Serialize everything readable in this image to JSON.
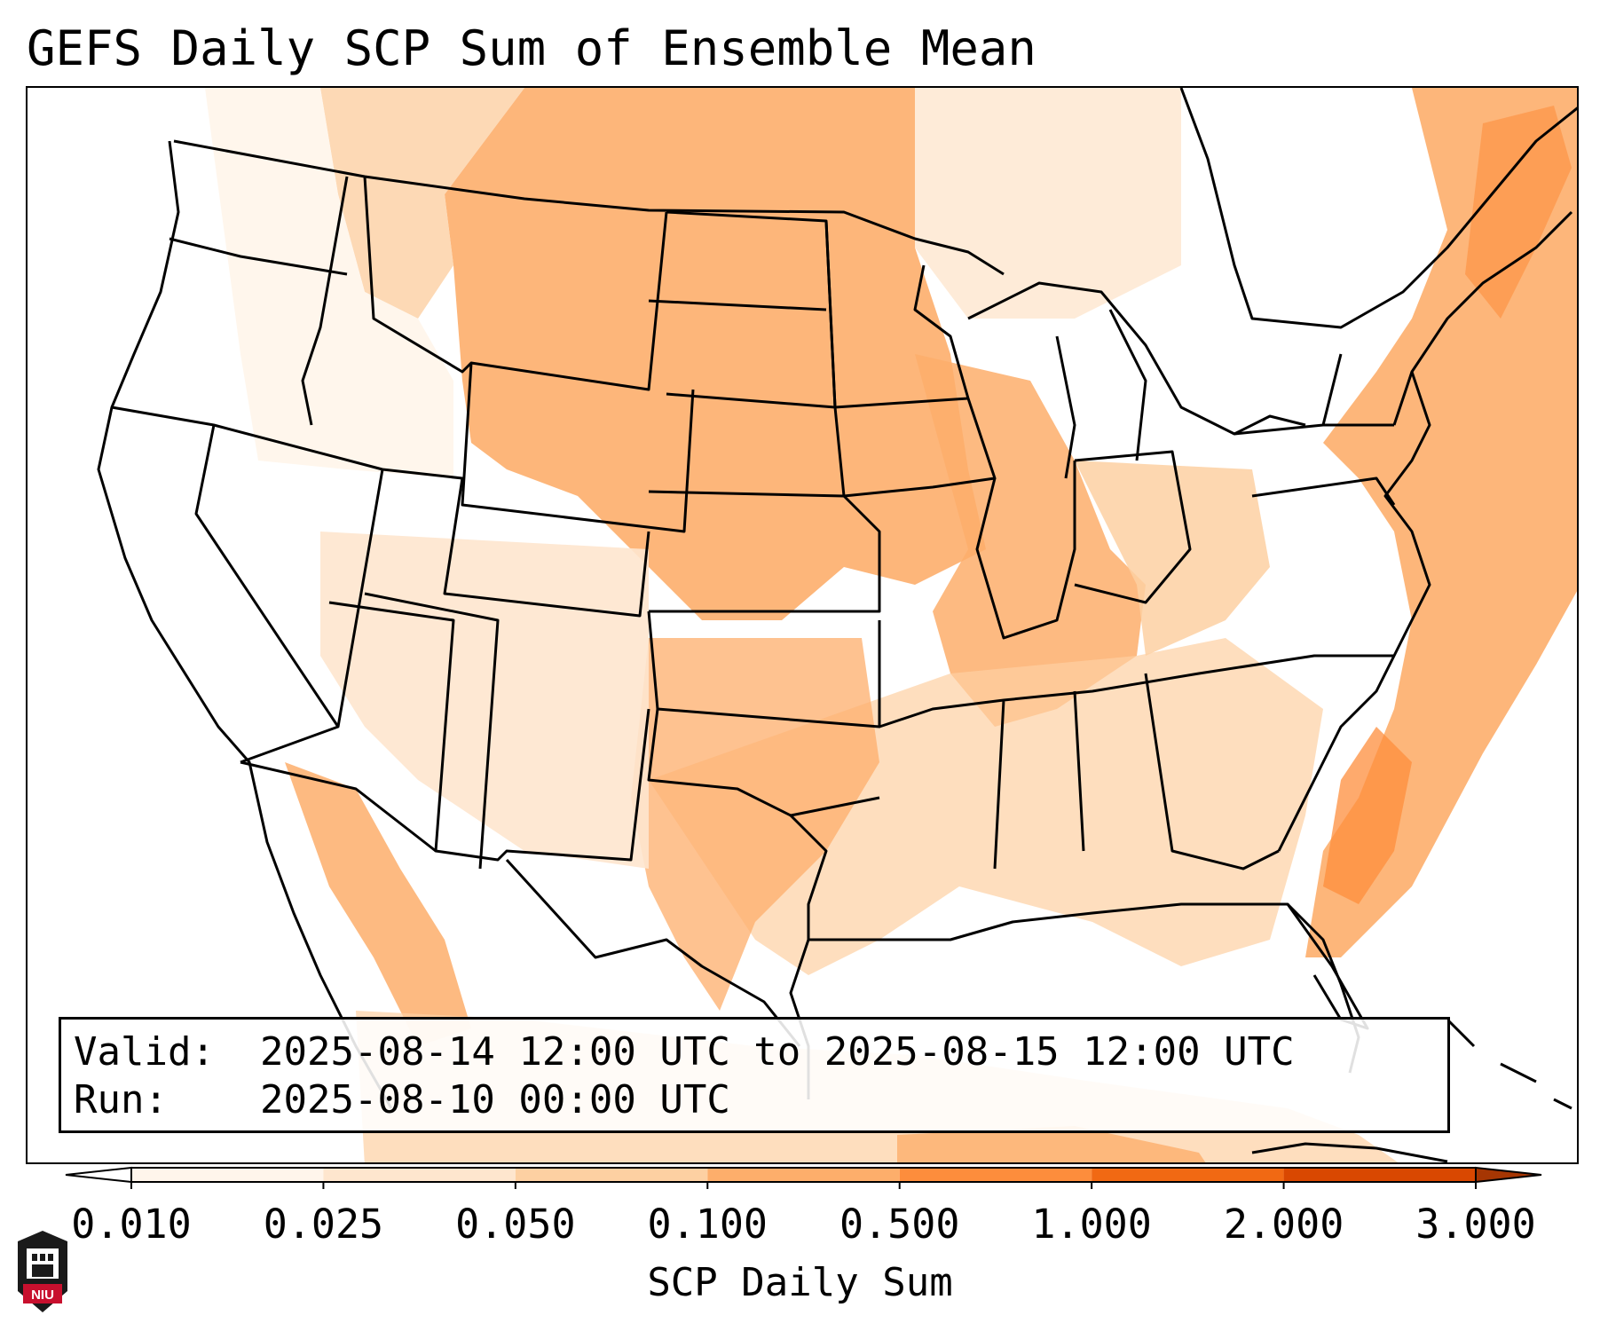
{
  "title": "GEFS Daily SCP Sum of Ensemble Mean",
  "valid_box": {
    "valid_label": "Valid:",
    "valid_value": "2025-08-14 12:00 UTC to 2025-08-15 12:00 UTC",
    "run_label": "Run:",
    "run_value": "2025-08-10 00:00 UTC"
  },
  "colorbar": {
    "label": "SCP Daily Sum",
    "ticks": [
      "0.010",
      "0.025",
      "0.050",
      "0.100",
      "0.500",
      "1.000",
      "2.000",
      "3.000"
    ],
    "bin_colors": [
      "#fff5eb",
      "#fee6ce",
      "#fdd0a2",
      "#fdae6b",
      "#fd8d3c",
      "#f16913",
      "#d94801"
    ],
    "under_color": "#ffffff",
    "over_color": "#a63603"
  },
  "logo": {
    "text": "NIU"
  },
  "colors": {
    "outline": "#000000"
  }
}
